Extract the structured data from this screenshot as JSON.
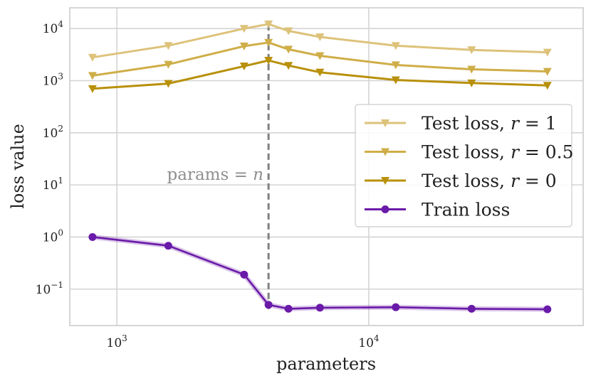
{
  "chart_data": {
    "type": "line",
    "xscale": "log",
    "yscale": "log",
    "xlabel": "parameters",
    "ylabel": "loss value",
    "xlim": [
      650,
      71000
    ],
    "ylim": [
      0.02,
      25000
    ],
    "grid": true,
    "x_ticks": [
      {
        "value": 1000,
        "base": "10",
        "exp": "3"
      },
      {
        "value": 10000,
        "base": "10",
        "exp": "4"
      }
    ],
    "y_ticks": [
      {
        "value": 0.1,
        "base": "10",
        "exp": "−1"
      },
      {
        "value": 1,
        "base": "10",
        "exp": "0"
      },
      {
        "value": 10,
        "base": "10",
        "exp": "1"
      },
      {
        "value": 100,
        "base": "10",
        "exp": "2"
      },
      {
        "value": 1000,
        "base": "10",
        "exp": "3"
      },
      {
        "value": 10000,
        "base": "10",
        "exp": "4"
      }
    ],
    "x": [
      800,
      1600,
      3200,
      4000,
      4800,
      6400,
      12800,
      25600,
      51200
    ],
    "series": [
      {
        "name": "Test loss, r = 1",
        "label_main": "Test loss, ",
        "label_var": "r",
        "label_val": " = 1",
        "color": "#ddc27a",
        "marker": "triangle-down",
        "values": [
          2800,
          4700,
          10000,
          12200,
          9000,
          6900,
          4700,
          3900,
          3500
        ]
      },
      {
        "name": "Test loss, r = 0.5",
        "label_main": "Test loss, ",
        "label_var": "r",
        "label_val": " = 0.5",
        "color": "#cfae48",
        "marker": "triangle-down",
        "values": [
          1250,
          2050,
          4600,
          5400,
          4000,
          3000,
          2000,
          1650,
          1500
        ]
      },
      {
        "name": "Test loss, r = 0",
        "label_main": "Test loss, ",
        "label_var": "r",
        "label_val": " = 0",
        "color": "#b8900a",
        "marker": "triangle-down",
        "values": [
          700,
          880,
          1900,
          2450,
          1950,
          1450,
          1030,
          900,
          810
        ]
      },
      {
        "name": "Train loss",
        "label_main": "Train loss",
        "label_var": "",
        "label_val": "",
        "color": "#6a1aa8",
        "marker": "circle",
        "values": [
          1.0,
          0.68,
          0.19,
          0.05,
          0.042,
          0.044,
          0.045,
          0.042,
          0.041
        ]
      }
    ],
    "vline": {
      "x": 4000,
      "label_prefix": "params = ",
      "label_var": "n"
    },
    "legend_position": "center-right"
  }
}
